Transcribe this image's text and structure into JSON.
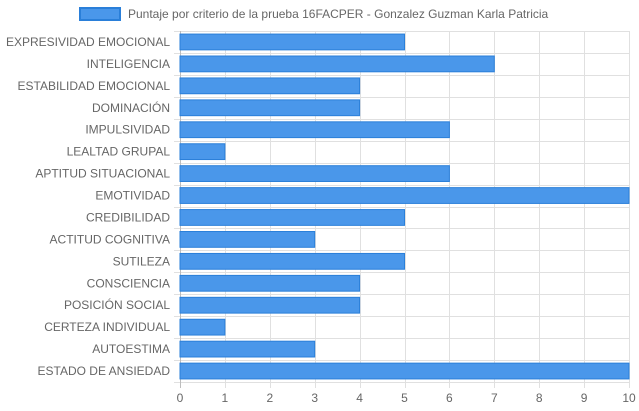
{
  "chart_data": {
    "type": "bar",
    "orientation": "horizontal",
    "categories": [
      "EXPRESIVIDAD EMOCIONAL",
      "INTELIGENCIA",
      "ESTABILIDAD EMOCIONAL",
      "DOMINACIÓN",
      "IMPULSIVIDAD",
      "LEALTAD GRUPAL",
      "APTITUD SITUACIONAL",
      "EMOTIVIDAD",
      "CREDIBILIDAD",
      "ACTITUD COGNITIVA",
      "SUTILEZA",
      "CONSCIENCIA",
      "POSICIÓN SOCIAL",
      "CERTEZA INDIVIDUAL",
      "AUTOESTIMA",
      "ESTADO DE ANSIEDAD"
    ],
    "series": [
      {
        "name": "Puntaje por criterio de la prueba 16FACPER - Gonzalez Guzman Karla Patricia",
        "values": [
          5,
          7,
          4,
          4,
          6,
          1,
          6,
          10,
          5,
          3,
          5,
          4,
          4,
          1,
          3,
          10
        ],
        "color": "#4a97ea",
        "border_color": "#2a7fd9"
      }
    ],
    "x_ticks": [
      "0",
      "1",
      "2",
      "3",
      "4",
      "5",
      "6",
      "7",
      "8",
      "9",
      "10"
    ],
    "xlim": [
      0,
      10
    ],
    "grid": true,
    "legend_position": "top"
  }
}
